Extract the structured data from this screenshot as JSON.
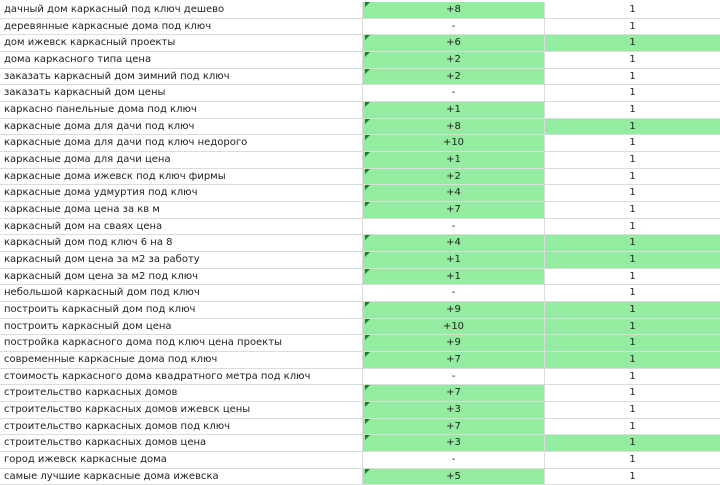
{
  "colors": {
    "highlight": "#93ec9f",
    "comment_marker": "#1c7a2a"
  },
  "rows": [
    {
      "query": "дачный дом каркасный под ключ дешево",
      "change": "+8",
      "count": "1",
      "change_hl": true,
      "count_hl": false
    },
    {
      "query": "деревянные каркасные дома под ключ",
      "change": "-",
      "count": "1",
      "change_hl": false,
      "count_hl": false
    },
    {
      "query": "дом ижевск каркасный проекты",
      "change": "+6",
      "count": "1",
      "change_hl": true,
      "count_hl": true
    },
    {
      "query": "дома каркасного типа цена",
      "change": "+2",
      "count": "1",
      "change_hl": true,
      "count_hl": false
    },
    {
      "query": "заказать каркасный дом зимний под ключ",
      "change": "+2",
      "count": "1",
      "change_hl": true,
      "count_hl": false
    },
    {
      "query": "заказать каркасный дом цены",
      "change": "-",
      "count": "1",
      "change_hl": false,
      "count_hl": false
    },
    {
      "query": "каркасно панельные дома под ключ",
      "change": "+1",
      "count": "1",
      "change_hl": true,
      "count_hl": false
    },
    {
      "query": "каркасные дома для дачи под ключ",
      "change": "+8",
      "count": "1",
      "change_hl": true,
      "count_hl": true
    },
    {
      "query": "каркасные дома для дачи под ключ недорого",
      "change": "+10",
      "count": "1",
      "change_hl": true,
      "count_hl": false
    },
    {
      "query": "каркасные дома для дачи цена",
      "change": "+1",
      "count": "1",
      "change_hl": true,
      "count_hl": false
    },
    {
      "query": "каркасные дома ижевск под ключ фирмы",
      "change": "+2",
      "count": "1",
      "change_hl": true,
      "count_hl": false
    },
    {
      "query": "каркасные дома удмуртия под ключ",
      "change": "+4",
      "count": "1",
      "change_hl": true,
      "count_hl": false
    },
    {
      "query": "каркасные дома цена за кв м",
      "change": "+7",
      "count": "1",
      "change_hl": true,
      "count_hl": false
    },
    {
      "query": "каркасный дом на сваях цена",
      "change": "-",
      "count": "1",
      "change_hl": false,
      "count_hl": false
    },
    {
      "query": "каркасный дом под ключ 6 на 8",
      "change": "+4",
      "count": "1",
      "change_hl": true,
      "count_hl": true
    },
    {
      "query": "каркасный дом цена за м2 за работу",
      "change": "+1",
      "count": "1",
      "change_hl": true,
      "count_hl": true
    },
    {
      "query": "каркасный дом цена за м2 под ключ",
      "change": "+1",
      "count": "1",
      "change_hl": true,
      "count_hl": false
    },
    {
      "query": "небольшой каркасный дом под ключ",
      "change": "-",
      "count": "1",
      "change_hl": false,
      "count_hl": false
    },
    {
      "query": "построить каркасный дом под ключ",
      "change": "+9",
      "count": "1",
      "change_hl": true,
      "count_hl": true
    },
    {
      "query": "построить каркасный дом цена",
      "change": "+10",
      "count": "1",
      "change_hl": true,
      "count_hl": true
    },
    {
      "query": "постройка каркасного дома под ключ цена проекты",
      "change": "+9",
      "count": "1",
      "change_hl": true,
      "count_hl": true
    },
    {
      "query": "современные каркасные дома под ключ",
      "change": "+7",
      "count": "1",
      "change_hl": true,
      "count_hl": true
    },
    {
      "query": "стоимость каркасного дома квадратного метра под ключ",
      "change": "-",
      "count": "1",
      "change_hl": false,
      "count_hl": false
    },
    {
      "query": "строительство каркасных домов",
      "change": "+7",
      "count": "1",
      "change_hl": true,
      "count_hl": false
    },
    {
      "query": "строительство каркасных домов ижевск цены",
      "change": "+3",
      "count": "1",
      "change_hl": true,
      "count_hl": false
    },
    {
      "query": "строительство каркасных домов под ключ",
      "change": "+7",
      "count": "1",
      "change_hl": true,
      "count_hl": false
    },
    {
      "query": "строительство каркасных домов цена",
      "change": "+3",
      "count": "1",
      "change_hl": true,
      "count_hl": true
    },
    {
      "query": "город ижевск каркасные дома",
      "change": "-",
      "count": "1",
      "change_hl": false,
      "count_hl": false
    },
    {
      "query": "самые лучшие каркасные дома ижевска",
      "change": "+5",
      "count": "1",
      "change_hl": true,
      "count_hl": false
    }
  ]
}
